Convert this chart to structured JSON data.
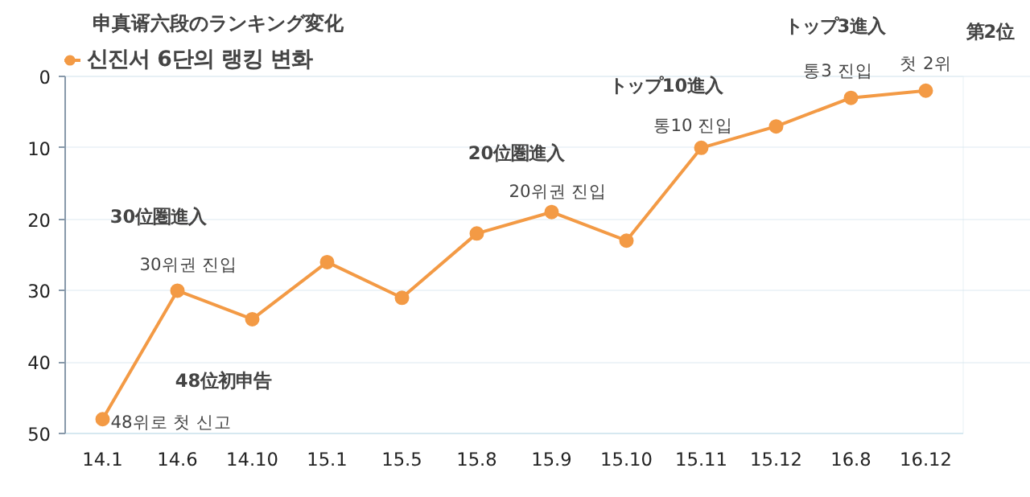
{
  "chart_data": {
    "type": "line",
    "title": "申真谞六段のランキング変化",
    "categories": [
      "14.1",
      "14.6",
      "14.10",
      "15.1",
      "15.5",
      "15.8",
      "15.9",
      "15.10",
      "15.11",
      "15.12",
      "16.8",
      "16.12"
    ],
    "series": [
      {
        "name": "신진서 6단의 랭킹 변화",
        "color": "#f39a45",
        "values": [
          48,
          30,
          34,
          26,
          31,
          22,
          19,
          23,
          10,
          7,
          3,
          2
        ]
      }
    ],
    "ylim": [
      50,
      0
    ],
    "yticks": [
      0,
      10,
      20,
      30,
      40,
      50
    ],
    "grid": "y",
    "legend": "top left",
    "marker": "circle",
    "annotations": [
      {
        "text": "48위로 첫 신고",
        "x": "14.1",
        "y": 48
      },
      {
        "text": "30위권 진입",
        "x": "14.6",
        "y": 30
      },
      {
        "text": "20위권 진입",
        "x": "15.9",
        "y": 19
      },
      {
        "text": "통10 진입",
        "x": "15.11",
        "y": 10
      },
      {
        "text": "통3 진입",
        "x": "16.8",
        "y": 3
      },
      {
        "text": "첫 2위",
        "x": "16.12",
        "y": 2
      },
      "48位初申告",
      "30位圏進入",
      "20位圏進入",
      "トップ10進入",
      "トップ3進入",
      "第2位"
    ]
  }
}
